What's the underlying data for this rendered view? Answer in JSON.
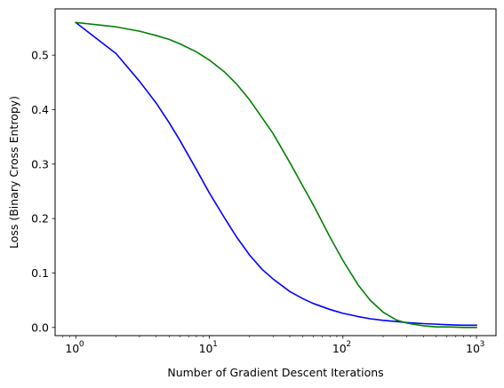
{
  "chart_data": {
    "type": "line",
    "title": "",
    "xlabel": "Number of Gradient Descent Iterations",
    "ylabel": "Loss (Binary Cross Entropy)",
    "xscale": "log",
    "xlim": [
      0.7,
      1400
    ],
    "ylim": [
      -0.015,
      0.585
    ],
    "grid": false,
    "legend": "none",
    "x_ticks": [
      {
        "value": 1,
        "base": "10",
        "exp": "0"
      },
      {
        "value": 10,
        "base": "10",
        "exp": "1"
      },
      {
        "value": 100,
        "base": "10",
        "exp": "2"
      },
      {
        "value": 1000,
        "base": "10",
        "exp": "3"
      }
    ],
    "y_ticks": [
      {
        "value": 0.0,
        "label": "0.0"
      },
      {
        "value": 0.1,
        "label": "0.1"
      },
      {
        "value": 0.2,
        "label": "0.2"
      },
      {
        "value": 0.3,
        "label": "0.3"
      },
      {
        "value": 0.4,
        "label": "0.4"
      },
      {
        "value": 0.5,
        "label": "0.5"
      }
    ],
    "series": [
      {
        "color": "#0000ff",
        "x": [
          1,
          2,
          3,
          4,
          5,
          6,
          8,
          10,
          13,
          16,
          20,
          25,
          30,
          40,
          50,
          60,
          80,
          100,
          130,
          160,
          200,
          250,
          300,
          400,
          500,
          600,
          800,
          1000
        ],
        "y": [
          0.56,
          0.503,
          0.452,
          0.412,
          0.376,
          0.344,
          0.29,
          0.247,
          0.201,
          0.166,
          0.133,
          0.106,
          0.089,
          0.066,
          0.053,
          0.044,
          0.033,
          0.026,
          0.02,
          0.016,
          0.013,
          0.011,
          0.009,
          0.007,
          0.006,
          0.005,
          0.004,
          0.004
        ]
      },
      {
        "color": "#008000",
        "x": [
          1,
          2,
          3,
          4,
          5,
          6,
          8,
          10,
          13,
          16,
          20,
          25,
          30,
          40,
          50,
          60,
          80,
          100,
          130,
          160,
          200,
          250,
          300,
          400,
          500,
          600,
          800,
          1000
        ],
        "y": [
          0.56,
          0.552,
          0.544,
          0.536,
          0.529,
          0.521,
          0.506,
          0.491,
          0.469,
          0.447,
          0.418,
          0.384,
          0.356,
          0.303,
          0.26,
          0.225,
          0.166,
          0.123,
          0.078,
          0.05,
          0.028,
          0.014,
          0.008,
          0.003,
          0.001,
          0.001,
          0.0,
          0.0
        ]
      }
    ]
  }
}
